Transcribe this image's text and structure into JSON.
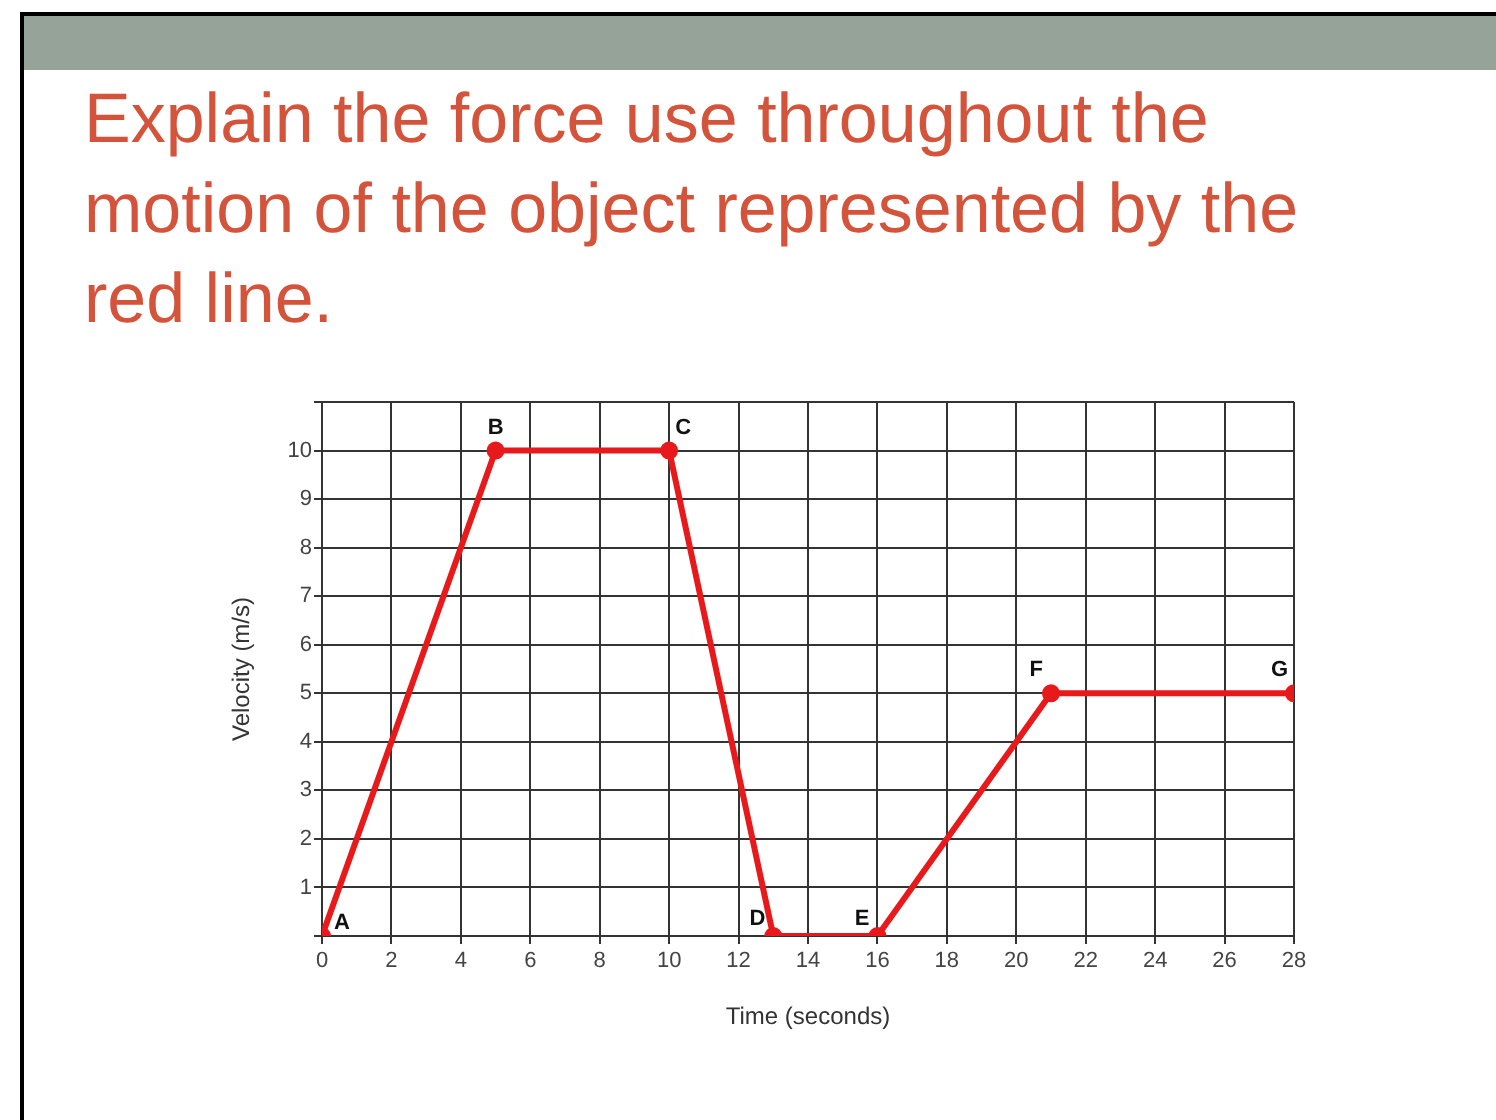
{
  "chart_data": {
    "type": "line",
    "title": "Explain the force use throughout the motion of the object represented by the red line.",
    "xlabel": "Time (seconds)",
    "ylabel": "Velocity (m/s)",
    "x": [
      0,
      5,
      10,
      13,
      16,
      21,
      28
    ],
    "values": [
      0,
      10,
      10,
      0,
      0,
      5,
      5
    ],
    "color": "#e8191b",
    "xlim": [
      0,
      28
    ],
    "xticks": [
      0,
      2,
      4,
      6,
      8,
      10,
      12,
      14,
      16,
      18,
      20,
      22,
      24,
      26,
      28
    ],
    "ylim": [
      0,
      11
    ],
    "yticks": [
      {
        "value": 0,
        "label": null
      },
      1,
      2,
      3,
      4,
      5,
      6,
      7,
      8,
      9,
      10,
      {
        "value": 11,
        "label": null
      }
    ],
    "grid": true,
    "marker": "circle",
    "line_style": "solid",
    "annotations": [
      {
        "text": "A",
        "x": 0,
        "y": 0
      },
      {
        "text": "B",
        "x": 5,
        "y": 10
      },
      {
        "text": "C",
        "x": 10,
        "y": 10
      },
      {
        "text": "D",
        "x": 13,
        "y": 0
      },
      {
        "text": "E",
        "x": 16,
        "y": 0
      },
      {
        "text": "F",
        "x": 21,
        "y": 5
      },
      {
        "text": "G",
        "x": 28,
        "y": 5
      }
    ]
  }
}
